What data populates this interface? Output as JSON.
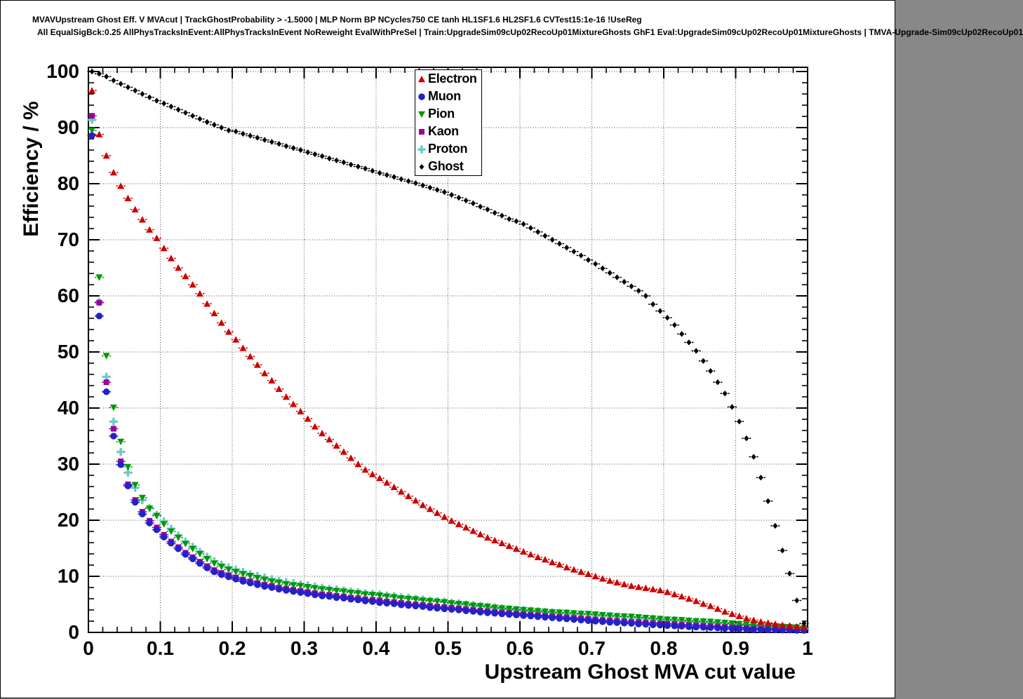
{
  "header": {
    "title_line1": "MVAVUpstream Ghost Eff. V MVAcut | TrackGhostProbability > -1.5000 | MLP Norm BP NCycles750 CE tanh HL1SF1.6 HL2SF1.6 CVTest15:1e-16 !UseReg",
    "title_line2": "All EqualSigBck:0.25 AllPhysTracksInEvent:AllPhysTracksInEvent NoReweight EvalWithPreSel | Train:UpgradeSim09cUp02RecoUp01MixtureGhosts GhF1 Eval:UpgradeSim09cUp02RecoUp01MixtureGhosts | TMVA-Upgrade-Sim09cUp02RecoUp01"
  },
  "axes": {
    "x": {
      "title": "Upstream Ghost MVA cut value",
      "min": 0,
      "max": 1,
      "tick_labels": [
        "0",
        "0.1",
        "0.2",
        "0.3",
        "0.4",
        "0.5",
        "0.6",
        "0.7",
        "0.8",
        "0.9",
        "1"
      ],
      "minor_tick_step": 0.02
    },
    "y": {
      "title": "Efficiency / %",
      "min": 0,
      "max": 100,
      "tick_labels": [
        "0",
        "10",
        "20",
        "30",
        "40",
        "50",
        "60",
        "70",
        "80",
        "90",
        "100"
      ],
      "minor_tick_step": 2
    }
  },
  "legend": {
    "entries": [
      "Electron",
      "Muon",
      "Pion",
      "Kaon",
      "Proton",
      "Ghost"
    ]
  },
  "chart_data": {
    "type": "scatter",
    "title": "MVAVUpstream Ghost Eff. V MVAcut",
    "xlabel": "Upstream Ghost MVA cut value",
    "ylabel": "Efficiency / %",
    "xlim": [
      0,
      1
    ],
    "ylim": [
      0,
      100
    ],
    "grid": true,
    "legend_position": "inside-top, left of center",
    "x_start": 0.005,
    "x_step": 0.01,
    "n_points": 100,
    "series": [
      {
        "name": "Electron",
        "marker": "triangle-up",
        "color": "#cc0000",
        "values": [
          96.6,
          88.8,
          85.0,
          82.0,
          79.6,
          77.4,
          75.4,
          73.6,
          71.8,
          70.3,
          68.5,
          66.7,
          65.0,
          63.5,
          62.0,
          60.4,
          58.6,
          56.9,
          55.2,
          53.6,
          52.2,
          50.7,
          49.2,
          47.7,
          46.2,
          44.9,
          43.4,
          42.0,
          40.7,
          39.4,
          38.1,
          36.7,
          35.5,
          34.4,
          33.3,
          32.2,
          31.1,
          30.0,
          29.0,
          28.2,
          27.5,
          26.7,
          25.9,
          25.1,
          24.3,
          23.5,
          22.7,
          22.0,
          21.3,
          20.6,
          19.9,
          19.3,
          18.7,
          18.1,
          17.5,
          16.9,
          16.4,
          15.9,
          15.4,
          14.9,
          14.4,
          13.9,
          13.4,
          13.0,
          12.5,
          12.1,
          11.6,
          11.2,
          10.8,
          10.4,
          10.0,
          9.6,
          9.2,
          8.9,
          8.6,
          8.3,
          8.1,
          7.9,
          7.7,
          7.5,
          7.2,
          6.8,
          6.4,
          6.0,
          5.6,
          5.1,
          4.7,
          4.2,
          3.7,
          3.3,
          2.9,
          2.5,
          2.2,
          1.9,
          1.7,
          1.5,
          1.3,
          1.2,
          1.0,
          0.9
        ]
      },
      {
        "name": "Muon",
        "marker": "circle",
        "color": "#2222cc",
        "values": [
          88.6,
          56.4,
          42.9,
          35.0,
          29.9,
          26.1,
          23.2,
          21.1,
          19.5,
          18.3,
          17.0,
          15.9,
          14.9,
          13.9,
          13.1,
          12.3,
          11.5,
          10.8,
          10.3,
          9.9,
          9.5,
          9.1,
          8.8,
          8.5,
          8.2,
          8.0,
          7.7,
          7.5,
          7.3,
          7.1,
          6.9,
          6.7,
          6.5,
          6.4,
          6.2,
          6.1,
          5.9,
          5.8,
          5.6,
          5.5,
          5.3,
          5.2,
          5.1,
          4.9,
          4.8,
          4.7,
          4.6,
          4.4,
          4.3,
          4.2,
          4.1,
          4.0,
          3.85,
          3.75,
          3.6,
          3.5,
          3.4,
          3.3,
          3.2,
          3.1,
          3.0,
          2.9,
          2.8,
          2.7,
          2.6,
          2.5,
          2.4,
          2.3,
          2.2,
          2.1,
          2.0,
          1.9,
          1.8,
          1.75,
          1.65,
          1.6,
          1.5,
          1.45,
          1.35,
          1.3,
          1.2,
          1.15,
          1.1,
          1.0,
          0.95,
          0.9,
          0.85,
          0.8,
          0.7,
          0.65,
          0.6,
          0.55,
          0.5,
          0.5,
          0.45,
          0.45,
          0.4,
          0.4,
          0.35,
          0.35
        ]
      },
      {
        "name": "Pion",
        "marker": "triangle-down",
        "color": "#009900",
        "values": [
          89.5,
          63.3,
          49.3,
          40.1,
          34.0,
          29.5,
          26.3,
          24.0,
          22.1,
          20.8,
          19.3,
          18.0,
          16.9,
          15.8,
          14.9,
          14.0,
          13.1,
          12.3,
          11.7,
          11.2,
          10.8,
          10.4,
          10.1,
          9.7,
          9.4,
          9.1,
          8.9,
          8.6,
          8.4,
          8.3,
          8.1,
          7.9,
          7.7,
          7.6,
          7.4,
          7.3,
          7.1,
          7.0,
          6.8,
          6.7,
          6.6,
          6.4,
          6.3,
          6.1,
          6.0,
          5.9,
          5.7,
          5.6,
          5.5,
          5.4,
          5.2,
          5.1,
          5.0,
          4.8,
          4.7,
          4.6,
          4.4,
          4.3,
          4.2,
          4.1,
          4.0,
          3.9,
          3.8,
          3.7,
          3.6,
          3.55,
          3.5,
          3.4,
          3.3,
          3.3,
          3.2,
          3.1,
          3.0,
          2.9,
          2.85,
          2.8,
          2.7,
          2.6,
          2.5,
          2.4,
          2.3,
          2.25,
          2.2,
          2.1,
          2.0,
          1.95,
          1.9,
          1.8,
          1.7,
          1.6,
          1.5,
          1.4,
          1.3,
          1.25,
          1.2,
          1.1,
          1.0,
          0.95,
          0.9,
          0.8
        ]
      },
      {
        "name": "Kaon",
        "marker": "square",
        "color": "#990099",
        "values": [
          92.1,
          58.8,
          44.6,
          36.3,
          30.5,
          26.4,
          23.6,
          21.5,
          19.9,
          18.7,
          17.4,
          16.2,
          15.2,
          14.2,
          13.4,
          12.6,
          11.8,
          11.1,
          10.6,
          10.2,
          9.8,
          9.4,
          9.1,
          8.8,
          8.5,
          8.3,
          8.0,
          7.8,
          7.6,
          7.4,
          7.2,
          7.0,
          6.8,
          6.7,
          6.5,
          6.4,
          6.2,
          6.1,
          5.9,
          5.8,
          5.7,
          5.5,
          5.4,
          5.25,
          5.1,
          5.0,
          4.9,
          4.75,
          4.6,
          4.5,
          4.4,
          4.3,
          4.15,
          4.05,
          3.9,
          3.8,
          3.7,
          3.6,
          3.5,
          3.4,
          3.3,
          3.2,
          3.1,
          3.0,
          2.9,
          2.8,
          2.7,
          2.6,
          2.5,
          2.4,
          2.3,
          2.2,
          2.15,
          2.05,
          2.0,
          1.9,
          1.85,
          1.75,
          1.7,
          1.6,
          1.55,
          1.5,
          1.4,
          1.35,
          1.3,
          1.2,
          1.15,
          1.1,
          1.0,
          0.95,
          0.9,
          0.85,
          0.8,
          0.75,
          0.7,
          0.65,
          0.6,
          0.55,
          0.5,
          0.45
        ]
      },
      {
        "name": "Proton",
        "marker": "cross",
        "color": "#70c9c9",
        "values": [
          91.4,
          58.9,
          45.6,
          37.6,
          32.2,
          28.5,
          25.8,
          23.6,
          22.2,
          21.0,
          19.8,
          18.5,
          17.3,
          16.2,
          15.3,
          14.4,
          13.5,
          12.7,
          12.1,
          11.6,
          11.2,
          10.8,
          10.4,
          10.1,
          9.8,
          9.5,
          9.2,
          9.0,
          8.8,
          8.6,
          8.4,
          8.2,
          8.0,
          7.8,
          7.7,
          7.5,
          7.35,
          7.2,
          7.0,
          6.9,
          6.8,
          6.6,
          6.5,
          6.3,
          6.2,
          6.0,
          5.9,
          5.7,
          5.6,
          5.5,
          5.3,
          5.2,
          5.0,
          4.9,
          4.75,
          4.6,
          4.5,
          4.35,
          4.2,
          4.1,
          4.0,
          3.9,
          3.8,
          3.7,
          3.6,
          3.5,
          3.45,
          3.35,
          3.3,
          3.2,
          3.1,
          3.0,
          2.95,
          2.85,
          2.8,
          2.7,
          2.6,
          2.5,
          2.45,
          2.35,
          2.25,
          2.2,
          2.1,
          2.0,
          1.95,
          1.9,
          1.8,
          1.7,
          1.65,
          1.55,
          1.45,
          1.35,
          1.3,
          1.2,
          1.15,
          1.05,
          1.0,
          0.9,
          0.85,
          0.8
        ]
      },
      {
        "name": "Ghost",
        "marker": "diamond",
        "color": "#000000",
        "values": [
          100.0,
          99.6,
          99.1,
          98.4,
          97.8,
          97.2,
          96.6,
          96.0,
          95.4,
          94.8,
          94.3,
          93.75,
          93.2,
          92.65,
          92.1,
          91.55,
          91.0,
          90.5,
          90.0,
          89.5,
          89.3,
          88.9,
          88.55,
          88.2,
          87.8,
          87.45,
          87.1,
          86.7,
          86.35,
          86.0,
          85.6,
          85.25,
          84.9,
          84.5,
          84.15,
          83.8,
          83.4,
          83.05,
          82.7,
          82.3,
          81.9,
          81.55,
          81.2,
          80.8,
          80.45,
          80.1,
          79.7,
          79.3,
          78.9,
          78.5,
          78.0,
          77.5,
          77.0,
          76.5,
          75.9,
          75.4,
          74.8,
          74.3,
          73.7,
          73.3,
          72.8,
          72.1,
          71.4,
          70.7,
          70.0,
          69.3,
          68.6,
          67.9,
          67.2,
          66.4,
          65.7,
          64.9,
          64.1,
          63.3,
          62.5,
          61.7,
          60.9,
          60.0,
          58.5,
          57.3,
          56.1,
          54.8,
          53.2,
          51.7,
          50.2,
          48.4,
          46.6,
          44.6,
          42.6,
          40.2,
          37.6,
          34.6,
          31.3,
          27.6,
          23.4,
          19.0,
          14.6,
          10.5,
          5.7,
          1.6
        ]
      }
    ]
  }
}
